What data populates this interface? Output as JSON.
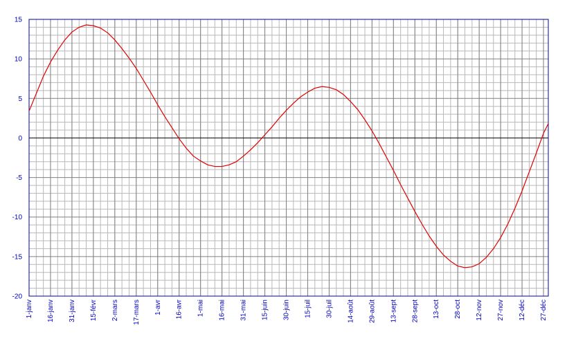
{
  "chart_data": {
    "type": "line",
    "categories": [
      "1-janv",
      null,
      null,
      "16-janv",
      null,
      null,
      "31-janv",
      null,
      null,
      "15-févr",
      null,
      null,
      "2-mars",
      null,
      null,
      "17-mars",
      null,
      null,
      "1-avr",
      null,
      null,
      "16-avr",
      null,
      null,
      "1-mai",
      null,
      null,
      "16-mai",
      null,
      null,
      "31-mai",
      null,
      null,
      "15-juin",
      null,
      null,
      "30-juin",
      null,
      null,
      "15-juil",
      null,
      null,
      "30-juil",
      null,
      null,
      "14-août",
      null,
      null,
      "29-août",
      null,
      null,
      "13-sept",
      null,
      null,
      "28-sept",
      null,
      null,
      "13-oct",
      null,
      null,
      "28-oct",
      null,
      null,
      "12-nov",
      null,
      null,
      "27-nov",
      null,
      null,
      "12-déc",
      null,
      null,
      "27-déc",
      null
    ],
    "series": [
      {
        "color": "#e00000",
        "values": [
          3.4,
          5.6,
          7.8,
          9.6,
          11.1,
          12.4,
          13.4,
          14.0,
          14.3,
          14.2,
          13.9,
          13.3,
          12.4,
          11.3,
          10.1,
          8.8,
          7.3,
          5.8,
          4.2,
          2.7,
          1.3,
          -0.1,
          -1.3,
          -2.3,
          -2.9,
          -3.4,
          -3.6,
          -3.6,
          -3.4,
          -3.0,
          -2.3,
          -1.5,
          -0.6,
          0.4,
          1.4,
          2.5,
          3.5,
          4.4,
          5.2,
          5.8,
          6.3,
          6.5,
          6.4,
          6.1,
          5.5,
          4.6,
          3.6,
          2.3,
          0.9,
          -0.7,
          -2.4,
          -4.1,
          -5.9,
          -7.6,
          -9.3,
          -10.9,
          -12.4,
          -13.7,
          -14.8,
          -15.6,
          -16.2,
          -16.4,
          -16.3,
          -15.9,
          -15.1,
          -14.0,
          -12.6,
          -10.9,
          -8.9,
          -6.7,
          -4.3,
          -1.9,
          0.6,
          2.4
        ]
      }
    ],
    "ylim": [
      -20,
      15
    ],
    "yticks": [
      -20,
      -15,
      -10,
      -5,
      0,
      5,
      10,
      15
    ],
    "grid": true,
    "minor_grid": true,
    "axis_color": "#0000a0",
    "label_color": "#0000c0"
  }
}
